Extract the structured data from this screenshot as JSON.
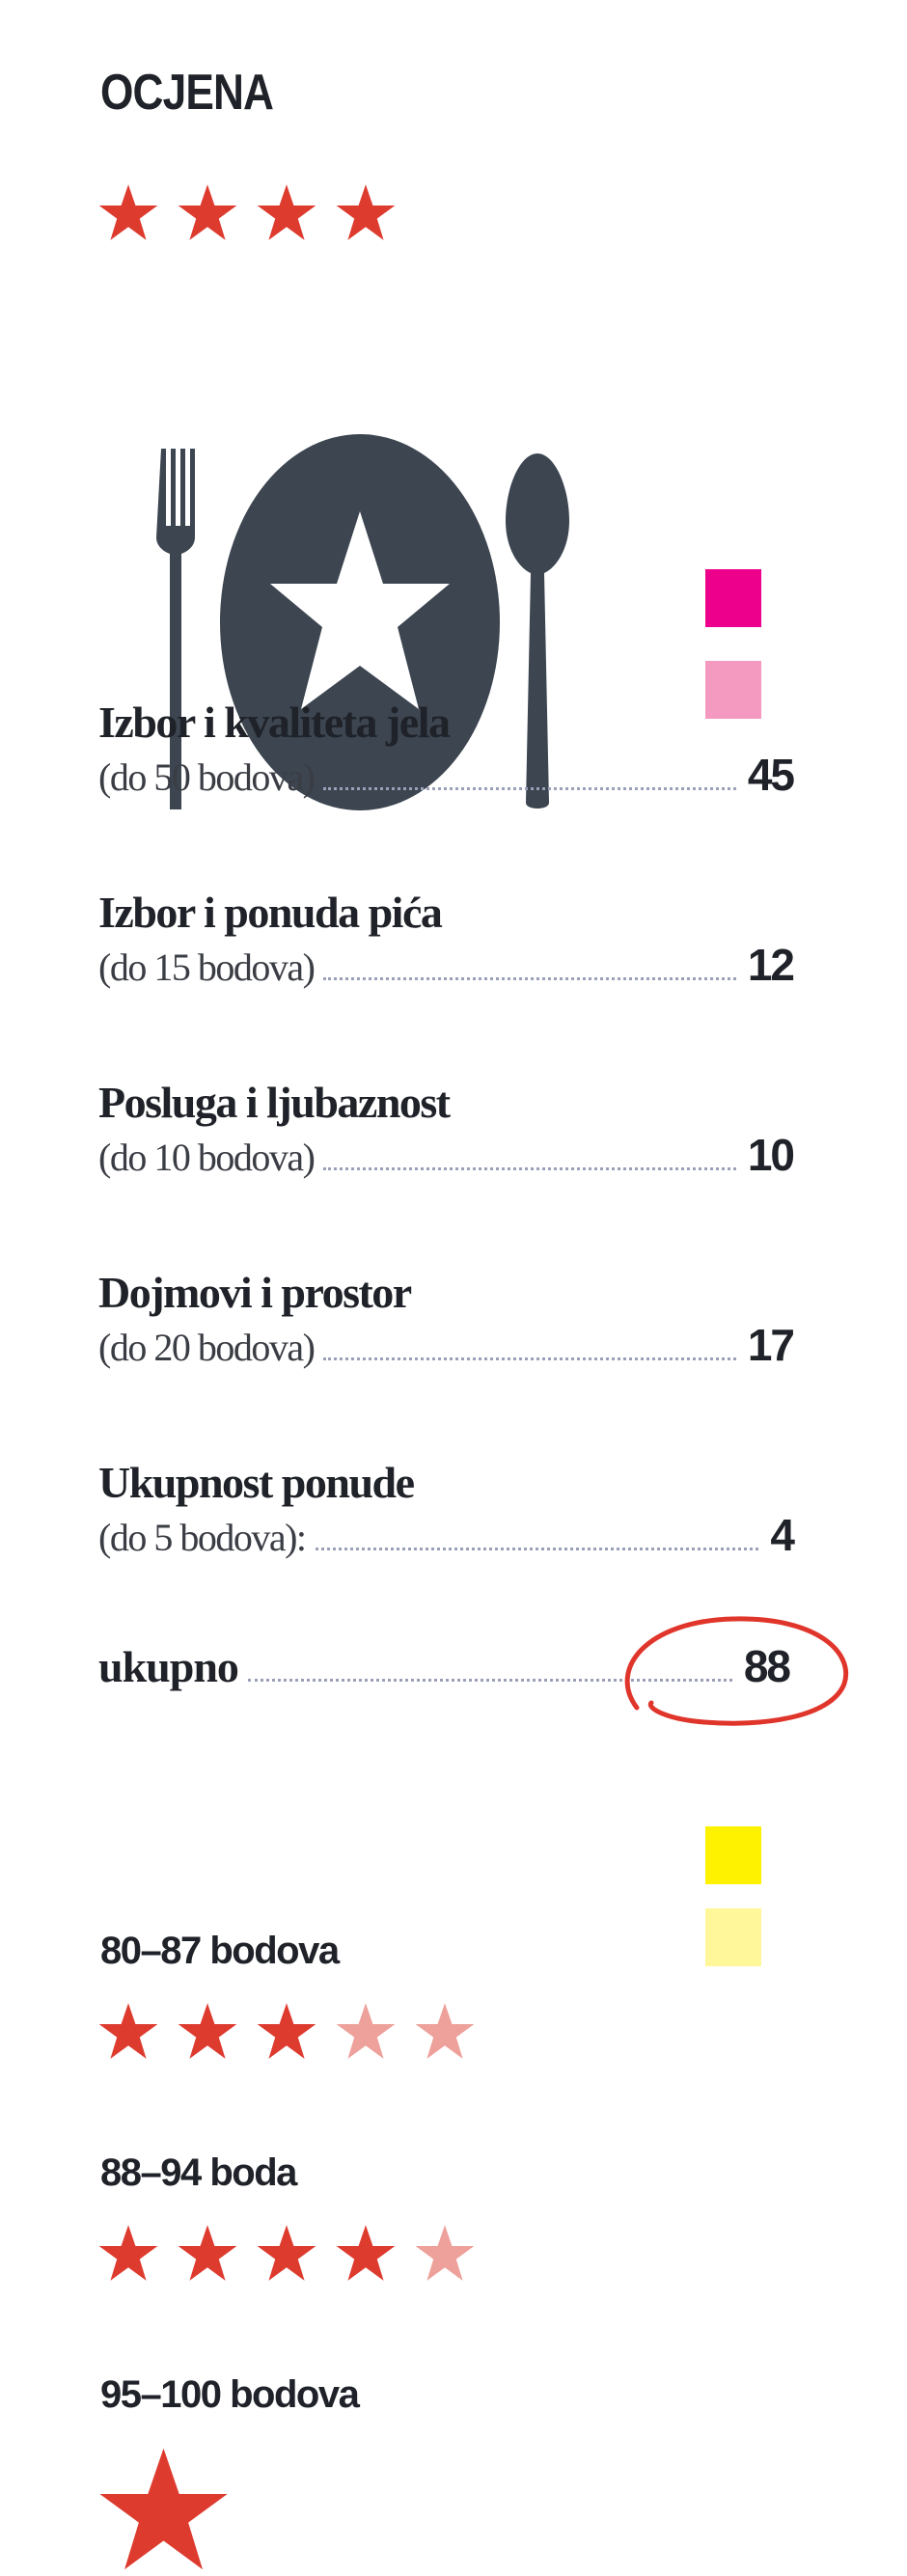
{
  "header": {
    "title": "OCJENA",
    "rating_stars": 4
  },
  "icon": "fork-plate-star-spoon-icon",
  "criteria": [
    {
      "title": "Izbor i kvaliteta jela",
      "max": "(do 50 bodova)",
      "score": "45"
    },
    {
      "title": "Izbor i ponuda pića",
      "max": "(do 15 bodova)",
      "score": "12"
    },
    {
      "title": "Posluga i ljubaznost",
      "max": "(do 10 bodova)",
      "score": "10"
    },
    {
      "title": "Dojmovi i prostor",
      "max": "(do 20 bodova)",
      "score": "17"
    },
    {
      "title": "Ukupnost ponude",
      "max": "(do 5 bodova):",
      "score": "4"
    }
  ],
  "total": {
    "label": "ukupno",
    "score": "88"
  },
  "scale": [
    {
      "label": "80–87 bodova",
      "stars_filled": 3,
      "stars_total": 5
    },
    {
      "label": "88–94 boda",
      "stars_filled": 4,
      "stars_total": 5
    },
    {
      "label": "95–100 bodova",
      "stars_filled": 1,
      "stars_total": 1
    }
  ],
  "colors": {
    "star": "#de3b2f",
    "star_faded": "#eea09a",
    "icon": "#3c4550",
    "magenta": "#ec008c",
    "pink": "#f49ac1",
    "yellow": "#fff200",
    "light_yellow": "#fff799",
    "circle": "#e0352b"
  }
}
